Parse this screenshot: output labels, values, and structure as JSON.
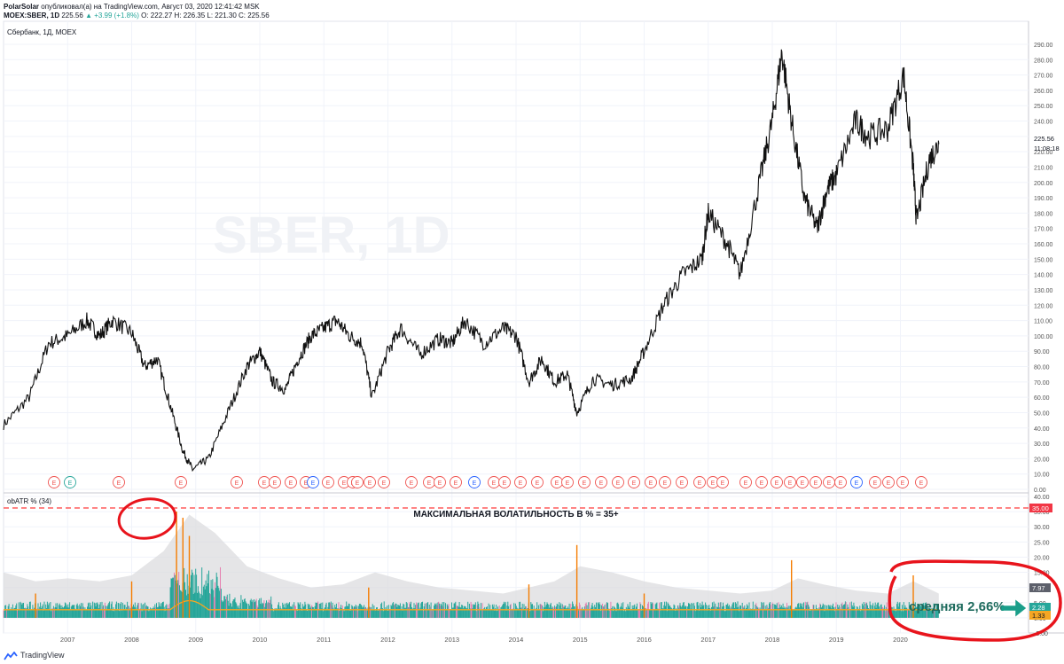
{
  "header": {
    "author": "PolarSolar",
    "published_text": "опубликовал(а) на TradingView.com, Август 03, 2020 12:41:42 MSK",
    "symbol": "MOEX:SBER, 1D",
    "price": "225.56",
    "change": "▲ +3.99 (+1.8%)",
    "ohlc": "O: 222.27  H: 226.35  L: 221.30  C: 225.56"
  },
  "main_pane": {
    "legend": "Сбербанк, 1Д, MOEX",
    "watermark": "SBER, 1D",
    "last_price_label": "225.56",
    "countdown_label": "11:08:18"
  },
  "indicator_pane": {
    "legend": "obATR % (34)",
    "annotation": "МАКСИМАЛЬНАЯ ВОЛАТИЛЬНОСТЬ В % = 35+",
    "average_annotation": "средняя 2,66%",
    "labels": {
      "max": "35.00",
      "upper": "7.97",
      "mid": "2.28",
      "low": "1.33"
    },
    "colors": {
      "spike": "#f57c00",
      "volume": "#26a69a",
      "volume_alt": "#e57fb0",
      "band": "#d9d9dc",
      "avg": "#f5a623",
      "max_line": "#ff2a2a"
    }
  },
  "footer": {
    "brand": "TradingView"
  },
  "chart_data": {
    "type": "line",
    "title": "Сбербанк, 1Д, MOEX",
    "x_ticks": [
      "2007",
      "2008",
      "2009",
      "2010",
      "2011",
      "2012",
      "2013",
      "2014",
      "2015",
      "2016",
      "2017",
      "2018",
      "2019",
      "2020"
    ],
    "x": [
      2006.0,
      2006.4,
      2006.7,
      2007.0,
      2007.3,
      2007.5,
      2007.7,
      2008.0,
      2008.2,
      2008.4,
      2008.6,
      2008.8,
      2008.95,
      2009.2,
      2009.5,
      2009.8,
      2010.0,
      2010.2,
      2010.4,
      2010.6,
      2010.8,
      2011.0,
      2011.2,
      2011.4,
      2011.6,
      2011.75,
      2012.0,
      2012.2,
      2012.5,
      2012.8,
      2013.0,
      2013.2,
      2013.5,
      2013.8,
      2014.0,
      2014.2,
      2014.4,
      2014.6,
      2014.8,
      2014.95,
      2015.2,
      2015.5,
      2015.8,
      2016.0,
      2016.3,
      2016.6,
      2016.9,
      2017.0,
      2017.3,
      2017.5,
      2017.8,
      2018.0,
      2018.15,
      2018.3,
      2018.5,
      2018.7,
      2018.85,
      2019.0,
      2019.3,
      2019.5,
      2019.8,
      2020.05,
      2020.2,
      2020.25,
      2020.45,
      2020.6
    ],
    "y": [
      42,
      60,
      95,
      100,
      110,
      100,
      110,
      102,
      80,
      85,
      55,
      25,
      13,
      20,
      50,
      80,
      90,
      70,
      65,
      85,
      100,
      105,
      110,
      100,
      95,
      60,
      90,
      105,
      88,
      98,
      95,
      110,
      95,
      105,
      100,
      70,
      85,
      70,
      75,
      50,
      72,
      68,
      72,
      90,
      120,
      140,
      150,
      180,
      160,
      140,
      200,
      240,
      285,
      240,
      190,
      170,
      195,
      205,
      240,
      230,
      235,
      270,
      210,
      175,
      215,
      225
    ],
    "y_ticks": [
      0,
      10,
      20,
      30,
      40,
      50,
      60,
      70,
      80,
      90,
      100,
      110,
      120,
      130,
      140,
      150,
      160,
      170,
      180,
      190,
      200,
      210,
      220,
      230,
      240,
      250,
      260,
      270,
      280,
      290
    ],
    "ylim": [
      0,
      290
    ],
    "earnings_markers": "E",
    "series": [
      {
        "name": "Сбербанк, 1Д, MOEX",
        "values": "see y"
      }
    ],
    "indicator": {
      "name": "obATR % (34)",
      "y_ticks": [
        -5,
        0,
        5,
        10,
        15,
        20,
        25,
        30,
        35,
        40
      ],
      "ylim": [
        -5,
        40
      ],
      "max_level": 35,
      "average": 2.66,
      "spikes": [
        {
          "x": 2008.7,
          "y": 35
        },
        {
          "x": 2008.8,
          "y": 33
        },
        {
          "x": 2008.9,
          "y": 27
        },
        {
          "x": 2008.0,
          "y": 12
        },
        {
          "x": 2011.7,
          "y": 10
        },
        {
          "x": 2014.2,
          "y": 11
        },
        {
          "x": 2014.95,
          "y": 24
        },
        {
          "x": 2018.3,
          "y": 19
        },
        {
          "x": 2020.2,
          "y": 14
        },
        {
          "x": 2006.5,
          "y": 8
        },
        {
          "x": 2016.0,
          "y": 8
        }
      ],
      "band": [
        [
          2006.0,
          15
        ],
        [
          2006.5,
          12
        ],
        [
          2007.0,
          13
        ],
        [
          2007.5,
          12
        ],
        [
          2008.0,
          14
        ],
        [
          2008.5,
          22
        ],
        [
          2008.9,
          34
        ],
        [
          2009.3,
          28
        ],
        [
          2009.8,
          17
        ],
        [
          2010.3,
          13
        ],
        [
          2010.8,
          10
        ],
        [
          2011.3,
          11
        ],
        [
          2011.8,
          15
        ],
        [
          2012.3,
          12
        ],
        [
          2012.8,
          10
        ],
        [
          2013.3,
          9
        ],
        [
          2013.8,
          8
        ],
        [
          2014.2,
          10
        ],
        [
          2014.6,
          12
        ],
        [
          2015.0,
          17
        ],
        [
          2015.5,
          15
        ],
        [
          2016.0,
          12
        ],
        [
          2016.5,
          10
        ],
        [
          2017.0,
          9
        ],
        [
          2017.5,
          8
        ],
        [
          2018.0,
          9
        ],
        [
          2018.4,
          13
        ],
        [
          2018.8,
          11
        ],
        [
          2019.3,
          9
        ],
        [
          2019.8,
          8
        ],
        [
          2020.2,
          12
        ],
        [
          2020.6,
          8
        ]
      ]
    }
  }
}
